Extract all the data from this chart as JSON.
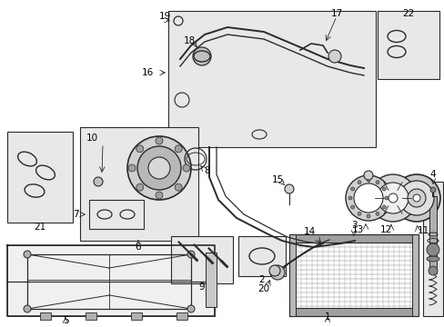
{
  "bg": "white",
  "lc": "#2a2a2a",
  "gray1": "#d8d8d8",
  "gray2": "#c0c0c0",
  "gray3": "#e8e8e8",
  "gray4": "#a8a8a8",
  "box_fill": "#e0e0e0",
  "figw": 4.89,
  "figh": 3.6,
  "dpi": 100
}
